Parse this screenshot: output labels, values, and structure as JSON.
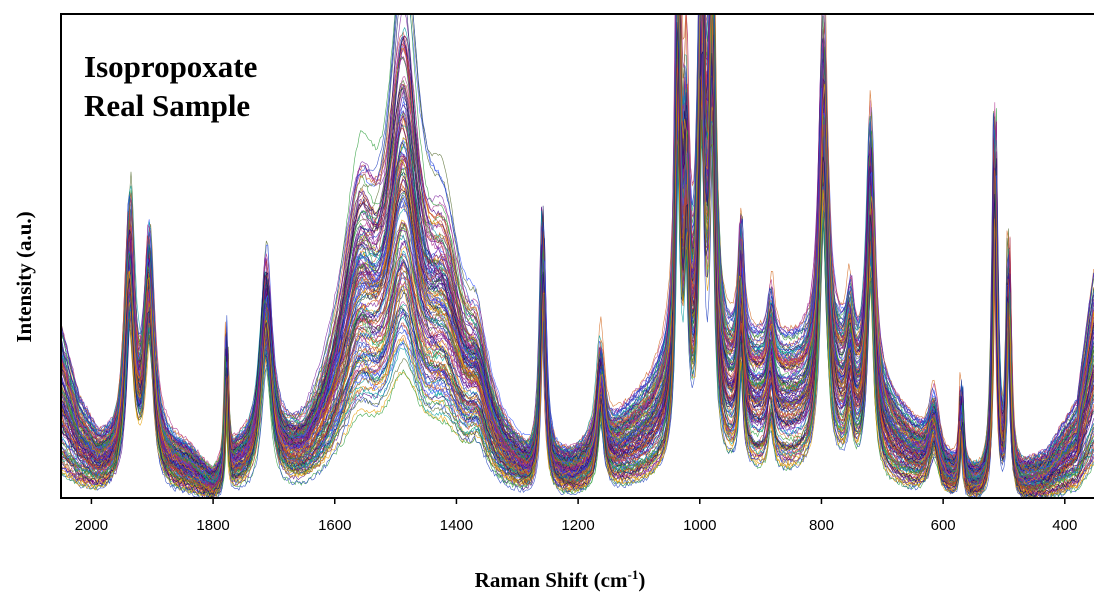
{
  "chart_data": {
    "type": "line",
    "title": "",
    "annotation": [
      "Isopropoxate",
      "Real Sample"
    ],
    "xlabel": "Raman Shift (cm",
    "xlabel_sup": "-1",
    "xlabel_end": ")",
    "ylabel": "Intensity (a.u.)",
    "xlim": [
      2050,
      352
    ],
    "ylim": [
      0,
      1
    ],
    "x_reversed": true,
    "y_ticks_shown": false,
    "grid": false,
    "legend": "none",
    "x_ticks": [
      2000,
      1800,
      1600,
      1400,
      1200,
      1000,
      800,
      600,
      400
    ],
    "n_spectra": 150,
    "series_colors": [
      "#1f3fbf",
      "#7a1fa0",
      "#2a9d3a",
      "#c0392b",
      "#e69f00",
      "#101060",
      "#00a0a0",
      "#b03090",
      "#556b2f",
      "#4b0082",
      "#d2691e",
      "#3355ff"
    ],
    "baseline": [
      {
        "x": 2050,
        "y": 0.22
      },
      {
        "x": 2020,
        "y": 0.12
      },
      {
        "x": 1990,
        "y": 0.07
      },
      {
        "x": 1960,
        "y": 0.06
      },
      {
        "x": 1880,
        "y": 0.06
      },
      {
        "x": 1840,
        "y": 0.05
      },
      {
        "x": 1800,
        "y": 0.01
      },
      {
        "x": 1760,
        "y": 0.05
      },
      {
        "x": 1650,
        "y": 0.06
      },
      {
        "x": 1600,
        "y": 0.12
      },
      {
        "x": 1500,
        "y": 0.18
      },
      {
        "x": 1400,
        "y": 0.14
      },
      {
        "x": 1320,
        "y": 0.06
      },
      {
        "x": 1280,
        "y": 0.03
      },
      {
        "x": 1210,
        "y": 0.04
      },
      {
        "x": 1150,
        "y": 0.08
      },
      {
        "x": 1080,
        "y": 0.14
      },
      {
        "x": 1050,
        "y": 0.18
      },
      {
        "x": 900,
        "y": 0.2
      },
      {
        "x": 850,
        "y": 0.2
      },
      {
        "x": 760,
        "y": 0.2
      },
      {
        "x": 650,
        "y": 0.09
      },
      {
        "x": 600,
        "y": 0.04
      },
      {
        "x": 540,
        "y": 0.02
      },
      {
        "x": 470,
        "y": 0.03
      },
      {
        "x": 430,
        "y": 0.05
      },
      {
        "x": 380,
        "y": 0.12
      },
      {
        "x": 352,
        "y": 0.3
      }
    ],
    "peaks": [
      {
        "x": 1937,
        "h": 0.48,
        "w": 9,
        "v": 0.35
      },
      {
        "x": 1905,
        "h": 0.42,
        "w": 9,
        "v": 0.35
      },
      {
        "x": 1778,
        "h": 0.28,
        "w": 2.5,
        "v": 0.25
      },
      {
        "x": 1713,
        "h": 0.38,
        "w": 11,
        "v": 0.35
      },
      {
        "x": 1560,
        "h": 0.38,
        "w": 35,
        "v": 0.8
      },
      {
        "x": 1487,
        "h": 0.65,
        "w": 28,
        "v": 0.8
      },
      {
        "x": 1420,
        "h": 0.26,
        "w": 32,
        "v": 0.8
      },
      {
        "x": 1365,
        "h": 0.12,
        "w": 18,
        "v": 0.6
      },
      {
        "x": 1258,
        "h": 0.5,
        "w": 5,
        "v": 0.3
      },
      {
        "x": 1163,
        "h": 0.2,
        "w": 7,
        "v": 0.35
      },
      {
        "x": 1036,
        "h": 0.92,
        "w": 5,
        "v": 0.35
      },
      {
        "x": 1022,
        "h": 0.48,
        "w": 5,
        "v": 0.35
      },
      {
        "x": 997,
        "h": 0.9,
        "w": 6,
        "v": 0.35
      },
      {
        "x": 980,
        "h": 0.86,
        "w": 6,
        "v": 0.35
      },
      {
        "x": 932,
        "h": 0.28,
        "w": 5,
        "v": 0.4
      },
      {
        "x": 883,
        "h": 0.12,
        "w": 6,
        "v": 0.4
      },
      {
        "x": 797,
        "h": 0.72,
        "w": 8,
        "v": 0.35
      },
      {
        "x": 753,
        "h": 0.12,
        "w": 6,
        "v": 0.4
      },
      {
        "x": 719,
        "h": 0.55,
        "w": 7,
        "v": 0.35
      },
      {
        "x": 615,
        "h": 0.12,
        "w": 10,
        "v": 0.4
      },
      {
        "x": 570,
        "h": 0.18,
        "w": 3,
        "v": 0.35
      },
      {
        "x": 515,
        "h": 0.72,
        "w": 4,
        "v": 0.3
      },
      {
        "x": 492,
        "h": 0.46,
        "w": 3.5,
        "v": 0.3
      }
    ]
  }
}
